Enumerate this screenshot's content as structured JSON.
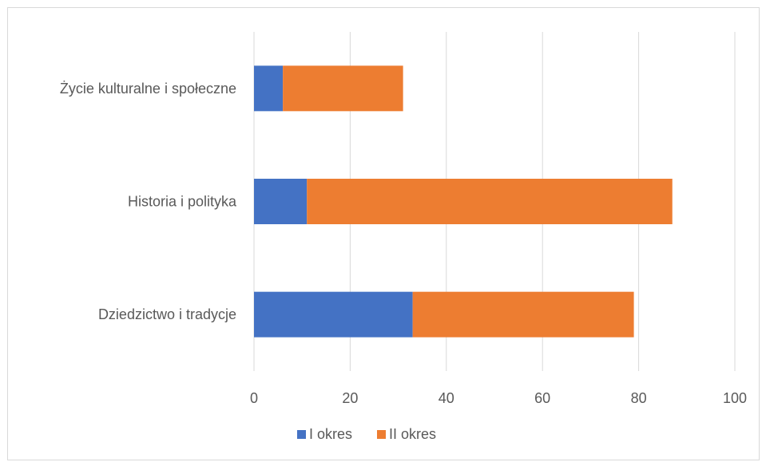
{
  "chart_data": {
    "type": "bar",
    "orientation": "horizontal",
    "stacked": true,
    "categories": [
      "Dziedzictwo i tradycje",
      "Historia i polityka",
      "Życie kulturalne i społeczne"
    ],
    "series": [
      {
        "name": "I okres",
        "values": [
          33,
          11,
          6
        ],
        "color": "#4472c4"
      },
      {
        "name": "II okres",
        "values": [
          46,
          76,
          25
        ],
        "color": "#ed7d31"
      }
    ],
    "xlim": [
      0,
      100
    ],
    "xticks": [
      "0",
      "20",
      "40",
      "60",
      "80",
      "100"
    ],
    "title": "",
    "xlabel": "",
    "ylabel": "",
    "grid": true,
    "legend_position": "bottom"
  }
}
